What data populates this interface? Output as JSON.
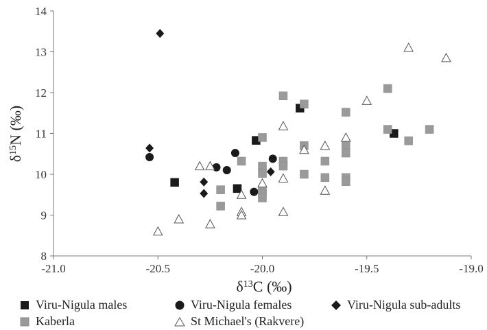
{
  "chart_data": {
    "type": "scatter",
    "title": "",
    "xlabel": {
      "prefix": "δ",
      "sup": "13",
      "rest": "C (‰)"
    },
    "ylabel": {
      "prefix": "δ",
      "sup": "15",
      "rest": "N (‰)"
    },
    "xlim": [
      -21.0,
      -19.0
    ],
    "ylim": [
      8,
      14
    ],
    "x_ticks": [
      -21.0,
      -20.5,
      -20.0,
      -19.5,
      -19.0
    ],
    "x_tick_labels": [
      "-21.0",
      "-20.5",
      "-20.0",
      "-19.5",
      "-19.0"
    ],
    "y_ticks": [
      8,
      9,
      10,
      11,
      12,
      13,
      14
    ],
    "y_tick_labels": [
      "8",
      "9",
      "10",
      "11",
      "12",
      "13",
      "14"
    ],
    "grid": false,
    "legend_position": "bottom",
    "series": [
      {
        "name": "Viru-Nigula males",
        "marker": "square",
        "color": "#1a1a1a",
        "points": [
          [
            -20.42,
            9.8
          ],
          [
            -20.12,
            9.65
          ],
          [
            -20.03,
            10.83
          ],
          [
            -19.82,
            11.62
          ],
          [
            -19.37,
            11.0
          ]
        ]
      },
      {
        "name": "Viru-Nigula females",
        "marker": "circle",
        "color": "#1a1a1a",
        "points": [
          [
            -20.54,
            10.42
          ],
          [
            -20.22,
            10.17
          ],
          [
            -20.17,
            10.1
          ],
          [
            -20.13,
            10.52
          ],
          [
            -20.04,
            9.57
          ],
          [
            -19.95,
            10.38
          ]
        ]
      },
      {
        "name": "Viru-Nigula sub-adults",
        "marker": "diamond",
        "color": "#1a1a1a",
        "points": [
          [
            -20.49,
            13.45
          ],
          [
            -20.54,
            10.64
          ],
          [
            -20.28,
            9.81
          ],
          [
            -20.28,
            9.53
          ],
          [
            -19.96,
            10.06
          ]
        ]
      },
      {
        "name": "Kaberla",
        "marker": "square",
        "color": "#9a9a9a",
        "points": [
          [
            -20.2,
            9.62
          ],
          [
            -20.2,
            9.22
          ],
          [
            -20.1,
            10.32
          ],
          [
            -20.0,
            10.9
          ],
          [
            -20.0,
            10.2
          ],
          [
            -20.0,
            10.02
          ],
          [
            -20.0,
            9.62
          ],
          [
            -20.0,
            9.52
          ],
          [
            -20.0,
            9.42
          ],
          [
            -19.9,
            11.92
          ],
          [
            -19.9,
            10.32
          ],
          [
            -19.9,
            10.2
          ],
          [
            -19.8,
            11.72
          ],
          [
            -19.8,
            10.7
          ],
          [
            -19.8,
            10.0
          ],
          [
            -19.7,
            10.32
          ],
          [
            -19.7,
            9.92
          ],
          [
            -19.6,
            11.52
          ],
          [
            -19.6,
            10.7
          ],
          [
            -19.6,
            10.52
          ],
          [
            -19.6,
            9.92
          ],
          [
            -19.6,
            9.82
          ],
          [
            -19.4,
            12.1
          ],
          [
            -19.4,
            11.1
          ],
          [
            -19.3,
            10.82
          ],
          [
            -19.2,
            11.1
          ]
        ]
      },
      {
        "name": "St Michael's (Rakvere)",
        "marker": "triangle",
        "color": "#555555",
        "points": [
          [
            -20.5,
            8.6
          ],
          [
            -20.4,
            8.9
          ],
          [
            -20.3,
            10.2
          ],
          [
            -20.25,
            10.2
          ],
          [
            -20.25,
            8.78
          ],
          [
            -20.1,
            9.5
          ],
          [
            -20.1,
            9.08
          ],
          [
            -20.1,
            9.0
          ],
          [
            -20.0,
            9.78
          ],
          [
            -19.9,
            11.18
          ],
          [
            -19.9,
            9.9
          ],
          [
            -19.9,
            9.08
          ],
          [
            -19.8,
            10.6
          ],
          [
            -19.7,
            10.7
          ],
          [
            -19.7,
            9.6
          ],
          [
            -19.6,
            10.9
          ],
          [
            -19.5,
            11.8
          ],
          [
            -19.3,
            13.1
          ],
          [
            -19.12,
            12.85
          ]
        ]
      }
    ]
  }
}
